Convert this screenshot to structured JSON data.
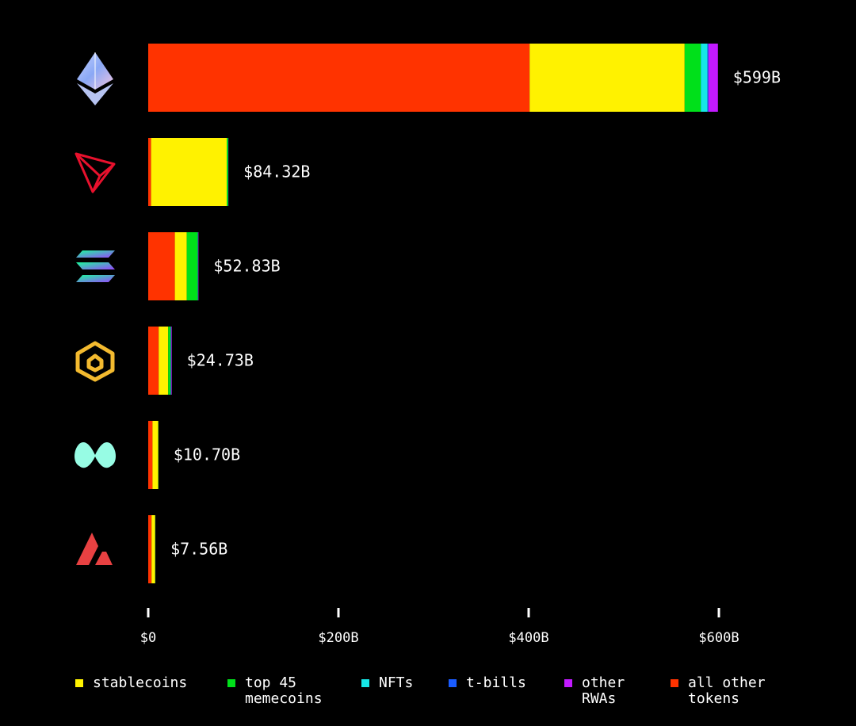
{
  "chart_data": {
    "type": "stacked-barh",
    "categories": [
      null,
      null,
      null,
      null,
      null,
      null
    ],
    "series": [
      {
        "name": "stablecoins",
        "color": "#fff200",
        "values": [
          163,
          79.5,
          12.5,
          10,
          6,
          3.8
        ]
      },
      {
        "name": "top 45 memecoins",
        "color": "#00e01a",
        "values": [
          17,
          1.5,
          11.5,
          2.5,
          0.2,
          0.2
        ]
      },
      {
        "name": "NFTs",
        "color": "#16e6e6",
        "values": [
          7,
          0.2,
          0.3,
          0.3,
          0,
          0
        ]
      },
      {
        "name": "t-bills",
        "color": "#1a5cff",
        "values": [
          1,
          0,
          0.2,
          0.3,
          0,
          0.03
        ]
      },
      {
        "name": "other RWAs",
        "color": "#c21aff",
        "values": [
          10,
          0.1,
          0.3,
          0.6,
          0,
          0.03
        ]
      },
      {
        "name": "all other tokens",
        "color": "#ff3300",
        "values": [
          401,
          3,
          28,
          11,
          4.5,
          3.5
        ]
      }
    ],
    "totals": {
      "values": [
        599,
        84.32,
        52.83,
        24.73,
        10.7,
        7.56
      ],
      "value_labels": [
        "$599B",
        "$84.32B",
        "$52.83B",
        "$24.73B",
        "$10.70B",
        "$7.56B"
      ]
    },
    "xlim": [
      0,
      600
    ],
    "xticks": [
      {
        "value": 0,
        "label": "$0"
      },
      {
        "value": 200,
        "label": "$200B"
      },
      {
        "value": 400,
        "label": "$400B"
      },
      {
        "value": 600,
        "label": "$600B"
      }
    ],
    "grid": false
  }
}
